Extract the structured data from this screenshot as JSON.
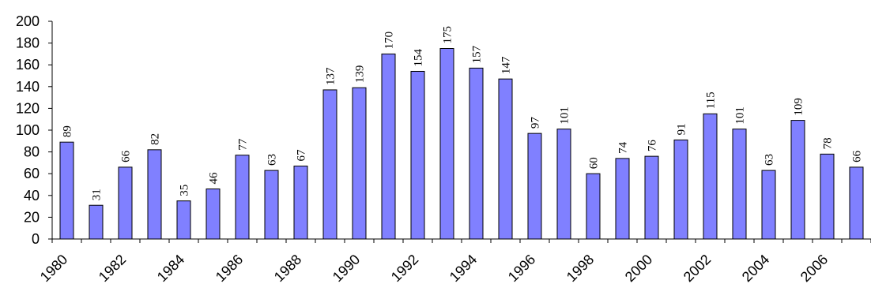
{
  "chart_data": {
    "type": "bar",
    "title": "",
    "xlabel": "",
    "ylabel": "",
    "ylim": [
      0,
      200
    ],
    "yticks": [
      0,
      20,
      40,
      60,
      80,
      100,
      120,
      140,
      160,
      180,
      200
    ],
    "grid": false,
    "bar_color": "#8080FF",
    "categories": [
      "1980",
      "1981",
      "1982",
      "1983",
      "1984",
      "1985",
      "1986",
      "1987",
      "1988",
      "1989",
      "1990",
      "1991",
      "1992",
      "1993",
      "1994",
      "1995",
      "1996",
      "1997",
      "1998",
      "1999",
      "2000",
      "2001",
      "2002",
      "2003",
      "2004",
      "2005",
      "2006",
      "2007"
    ],
    "x_tick_labels": [
      "1980",
      "1982",
      "1984",
      "1986",
      "1988",
      "1990",
      "1992",
      "1994",
      "1996",
      "1998",
      "2000",
      "2002",
      "2004",
      "2006"
    ],
    "values": [
      89,
      31,
      66,
      82,
      35,
      46,
      77,
      63,
      67,
      137,
      139,
      170,
      154,
      175,
      157,
      147,
      97,
      101,
      60,
      74,
      76,
      91,
      115,
      101,
      63,
      109,
      78,
      66
    ],
    "data_labels": [
      "89",
      "31",
      "66",
      "82",
      "35",
      "46",
      "77",
      "63",
      "67",
      "137",
      "139",
      "170",
      "154",
      "175",
      "157",
      "147",
      "97",
      "101",
      "60",
      "74",
      "76",
      "91",
      "115",
      "101",
      "63",
      "109",
      "78",
      "66"
    ]
  }
}
